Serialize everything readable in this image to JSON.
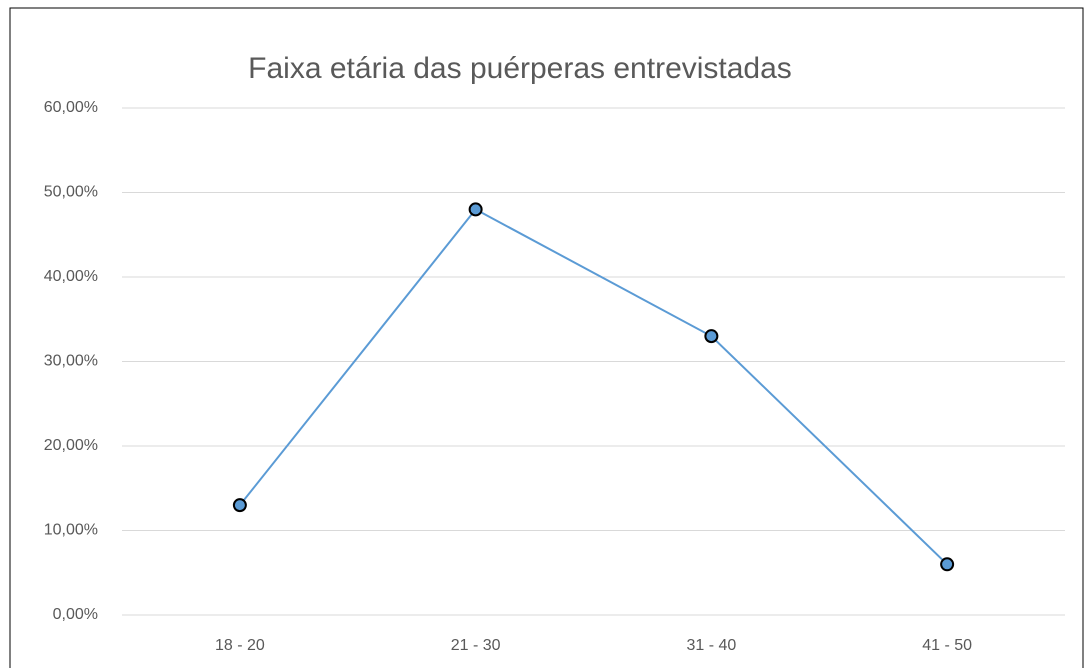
{
  "chart_data": {
    "type": "line",
    "title": "Faixa etária das puérperas entrevistadas",
    "categories": [
      "18 - 20",
      "21 - 30",
      "31 - 40",
      "41 - 50"
    ],
    "series": [
      {
        "name": "Faixa etária",
        "color": "#5b9bd5",
        "values": [
          13,
          48,
          33,
          6
        ]
      }
    ],
    "ylim": [
      0,
      60
    ],
    "yticks": [
      {
        "value": 0,
        "label": "0,00%"
      },
      {
        "value": 10,
        "label": "10,00%"
      },
      {
        "value": 20,
        "label": "20,00%"
      },
      {
        "value": 30,
        "label": "30,00%"
      },
      {
        "value": 40,
        "label": "40,00%"
      },
      {
        "value": 50,
        "label": "50,00%"
      },
      {
        "value": 60,
        "label": "60,00%"
      }
    ],
    "grid": true
  }
}
